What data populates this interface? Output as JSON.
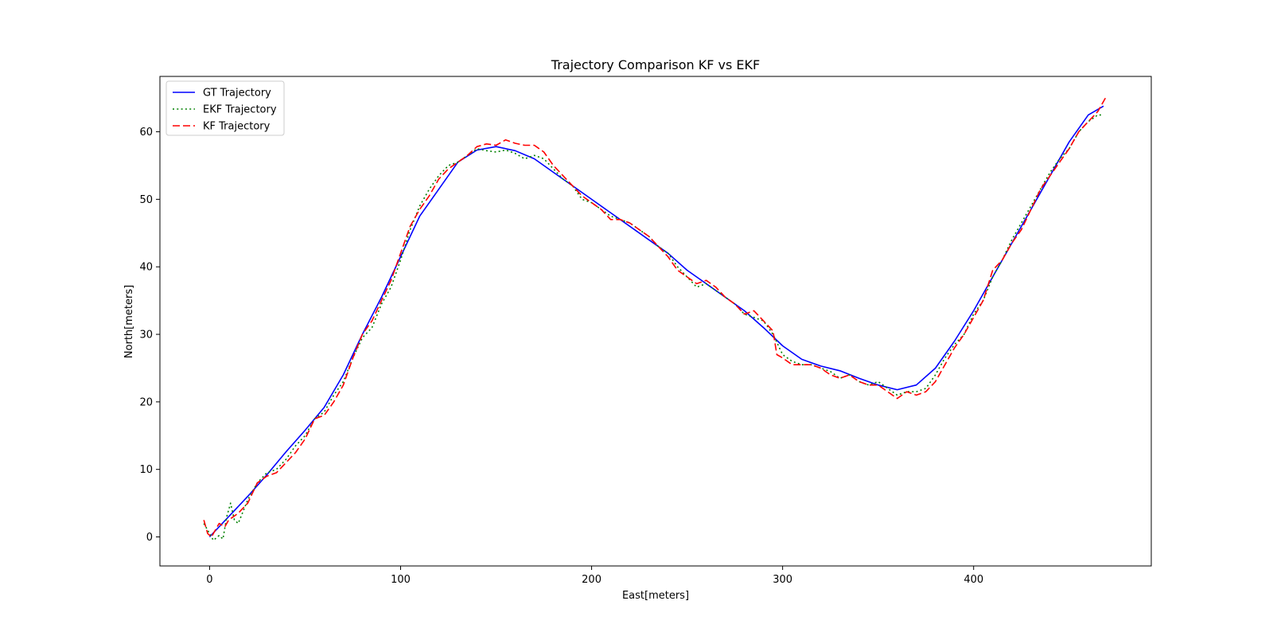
{
  "chart_data": {
    "type": "line",
    "title": "Trajectory Comparison KF vs EKF",
    "xlabel": "East[meters]",
    "ylabel": "North[meters]",
    "xlim": [
      -26,
      493
    ],
    "ylim": [
      -4.3,
      68.2
    ],
    "xticks": [
      0,
      100,
      200,
      300,
      400
    ],
    "yticks": [
      0,
      10,
      20,
      30,
      40,
      50,
      60
    ],
    "grid": false,
    "legend_position": "top-left",
    "series": [
      {
        "name": "GT Trajectory",
        "color": "#0000ff",
        "style": "solid",
        "points": [
          [
            0,
            0
          ],
          [
            10,
            3
          ],
          [
            20,
            6
          ],
          [
            30,
            9.2
          ],
          [
            40,
            12.6
          ],
          [
            50,
            15.8
          ],
          [
            60,
            19.2
          ],
          [
            70,
            24
          ],
          [
            80,
            30
          ],
          [
            90,
            35.5
          ],
          [
            100,
            41.5
          ],
          [
            110,
            47.5
          ],
          [
            120,
            51.5
          ],
          [
            130,
            55.5
          ],
          [
            140,
            57.3
          ],
          [
            150,
            57.8
          ],
          [
            160,
            57.2
          ],
          [
            170,
            56
          ],
          [
            180,
            54
          ],
          [
            190,
            52
          ],
          [
            200,
            50
          ],
          [
            210,
            48
          ],
          [
            220,
            46
          ],
          [
            230,
            44
          ],
          [
            240,
            42
          ],
          [
            250,
            39.5
          ],
          [
            260,
            37.5
          ],
          [
            270,
            35.5
          ],
          [
            280,
            33.5
          ],
          [
            290,
            31
          ],
          [
            300,
            28.3
          ],
          [
            310,
            26.3
          ],
          [
            320,
            25.3
          ],
          [
            330,
            24.6
          ],
          [
            340,
            23.5
          ],
          [
            350,
            22.5
          ],
          [
            360,
            21.8
          ],
          [
            370,
            22.5
          ],
          [
            380,
            25
          ],
          [
            390,
            29
          ],
          [
            400,
            33.5
          ],
          [
            410,
            38.5
          ],
          [
            420,
            43.5
          ],
          [
            430,
            48.5
          ],
          [
            440,
            53.5
          ],
          [
            450,
            58.5
          ],
          [
            460,
            62.5
          ],
          [
            468,
            63.8
          ]
        ]
      },
      {
        "name": "EKF Trajectory",
        "color": "#008000",
        "style": "dotted",
        "points": [
          [
            -3,
            2
          ],
          [
            0,
            0.5
          ],
          [
            2,
            -0.5
          ],
          [
            5,
            0.2
          ],
          [
            7,
            -0.3
          ],
          [
            9,
            3
          ],
          [
            11,
            5
          ],
          [
            13,
            2.5
          ],
          [
            15,
            2
          ],
          [
            20,
            5.5
          ],
          [
            25,
            8
          ],
          [
            30,
            9.5
          ],
          [
            35,
            10
          ],
          [
            40,
            11.5
          ],
          [
            45,
            13.5
          ],
          [
            50,
            15
          ],
          [
            55,
            17.5
          ],
          [
            60,
            18.5
          ],
          [
            65,
            21
          ],
          [
            70,
            23
          ],
          [
            75,
            26.5
          ],
          [
            80,
            29.5
          ],
          [
            85,
            31
          ],
          [
            90,
            34.5
          ],
          [
            95,
            37
          ],
          [
            100,
            41
          ],
          [
            105,
            45.5
          ],
          [
            110,
            49
          ],
          [
            115,
            51.5
          ],
          [
            120,
            53.5
          ],
          [
            125,
            55
          ],
          [
            130,
            55.5
          ],
          [
            135,
            56.5
          ],
          [
            140,
            57.5
          ],
          [
            145,
            57.2
          ],
          [
            150,
            57
          ],
          [
            155,
            57.3
          ],
          [
            160,
            56.8
          ],
          [
            165,
            56
          ],
          [
            170,
            56.5
          ],
          [
            175,
            56
          ],
          [
            180,
            54.5
          ],
          [
            185,
            53
          ],
          [
            190,
            52
          ],
          [
            195,
            50
          ],
          [
            200,
            49.5
          ],
          [
            205,
            48.5
          ],
          [
            210,
            47.5
          ],
          [
            215,
            47
          ],
          [
            220,
            46.5
          ],
          [
            225,
            45.5
          ],
          [
            230,
            44.5
          ],
          [
            235,
            43
          ],
          [
            240,
            42
          ],
          [
            245,
            40
          ],
          [
            250,
            38.5
          ],
          [
            255,
            37
          ],
          [
            260,
            37.5
          ],
          [
            265,
            36.5
          ],
          [
            270,
            35.5
          ],
          [
            275,
            34.5
          ],
          [
            280,
            33
          ],
          [
            285,
            32.5
          ],
          [
            290,
            32
          ],
          [
            295,
            30
          ],
          [
            300,
            27
          ],
          [
            305,
            26
          ],
          [
            310,
            25.5
          ],
          [
            315,
            25.5
          ],
          [
            320,
            25
          ],
          [
            325,
            24.5
          ],
          [
            330,
            23.5
          ],
          [
            335,
            24
          ],
          [
            340,
            23
          ],
          [
            345,
            22.5
          ],
          [
            350,
            23
          ],
          [
            355,
            22
          ],
          [
            360,
            21
          ],
          [
            365,
            21.5
          ],
          [
            370,
            21.5
          ],
          [
            375,
            22
          ],
          [
            380,
            24
          ],
          [
            385,
            26.5
          ],
          [
            390,
            28.5
          ],
          [
            395,
            30
          ],
          [
            400,
            33
          ],
          [
            405,
            35
          ],
          [
            410,
            38.5
          ],
          [
            415,
            41
          ],
          [
            420,
            44
          ],
          [
            425,
            46.5
          ],
          [
            430,
            49
          ],
          [
            435,
            51.5
          ],
          [
            440,
            54
          ],
          [
            445,
            56
          ],
          [
            450,
            57.5
          ],
          [
            455,
            60
          ],
          [
            460,
            61.5
          ],
          [
            465,
            62.5
          ],
          [
            468,
            62.5
          ]
        ]
      },
      {
        "name": "KF Trajectory",
        "color": "#ff0000",
        "style": "dashed",
        "points": [
          [
            -3,
            2.5
          ],
          [
            -1,
            0.5
          ],
          [
            1,
            0
          ],
          [
            3,
            1
          ],
          [
            5,
            2
          ],
          [
            8,
            1.5
          ],
          [
            10,
            2.5
          ],
          [
            15,
            3.5
          ],
          [
            20,
            5
          ],
          [
            25,
            8
          ],
          [
            30,
            9
          ],
          [
            35,
            9.5
          ],
          [
            40,
            11
          ],
          [
            45,
            12.5
          ],
          [
            50,
            14.5
          ],
          [
            55,
            17.5
          ],
          [
            60,
            18
          ],
          [
            65,
            20
          ],
          [
            70,
            22.5
          ],
          [
            75,
            26.5
          ],
          [
            80,
            30
          ],
          [
            85,
            32
          ],
          [
            90,
            35
          ],
          [
            95,
            38
          ],
          [
            100,
            42
          ],
          [
            105,
            46
          ],
          [
            110,
            48.5
          ],
          [
            115,
            50.5
          ],
          [
            120,
            53
          ],
          [
            125,
            54.5
          ],
          [
            130,
            55.5
          ],
          [
            135,
            56.5
          ],
          [
            140,
            57.8
          ],
          [
            145,
            58.2
          ],
          [
            150,
            58
          ],
          [
            155,
            58.8
          ],
          [
            160,
            58.3
          ],
          [
            165,
            58
          ],
          [
            170,
            58
          ],
          [
            175,
            57
          ],
          [
            180,
            55
          ],
          [
            185,
            53.5
          ],
          [
            190,
            52
          ],
          [
            195,
            50.5
          ],
          [
            200,
            49.5
          ],
          [
            205,
            48.5
          ],
          [
            210,
            47
          ],
          [
            215,
            47
          ],
          [
            220,
            46.5
          ],
          [
            225,
            45.5
          ],
          [
            230,
            44.5
          ],
          [
            235,
            43
          ],
          [
            240,
            41.5
          ],
          [
            245,
            39.5
          ],
          [
            250,
            38.5
          ],
          [
            255,
            37.5
          ],
          [
            260,
            38
          ],
          [
            265,
            37
          ],
          [
            270,
            35.5
          ],
          [
            275,
            34.5
          ],
          [
            280,
            33
          ],
          [
            285,
            33.5
          ],
          [
            290,
            32
          ],
          [
            295,
            30.5
          ],
          [
            297,
            27
          ],
          [
            300,
            26.5
          ],
          [
            305,
            25.5
          ],
          [
            310,
            25.5
          ],
          [
            315,
            25.5
          ],
          [
            320,
            25
          ],
          [
            325,
            24
          ],
          [
            330,
            23.5
          ],
          [
            335,
            24
          ],
          [
            340,
            23
          ],
          [
            345,
            22.5
          ],
          [
            350,
            22.5
          ],
          [
            355,
            21.5
          ],
          [
            360,
            20.5
          ],
          [
            365,
            21.5
          ],
          [
            370,
            21
          ],
          [
            375,
            21.5
          ],
          [
            380,
            23
          ],
          [
            385,
            25.5
          ],
          [
            390,
            28
          ],
          [
            395,
            30
          ],
          [
            400,
            32.5
          ],
          [
            405,
            35
          ],
          [
            410,
            39.5
          ],
          [
            415,
            41
          ],
          [
            420,
            43.5
          ],
          [
            425,
            45.5
          ],
          [
            430,
            48.5
          ],
          [
            435,
            51.5
          ],
          [
            440,
            53.5
          ],
          [
            445,
            55.5
          ],
          [
            450,
            57.5
          ],
          [
            455,
            60
          ],
          [
            460,
            61.5
          ],
          [
            465,
            63
          ],
          [
            469,
            65
          ]
        ]
      }
    ]
  }
}
